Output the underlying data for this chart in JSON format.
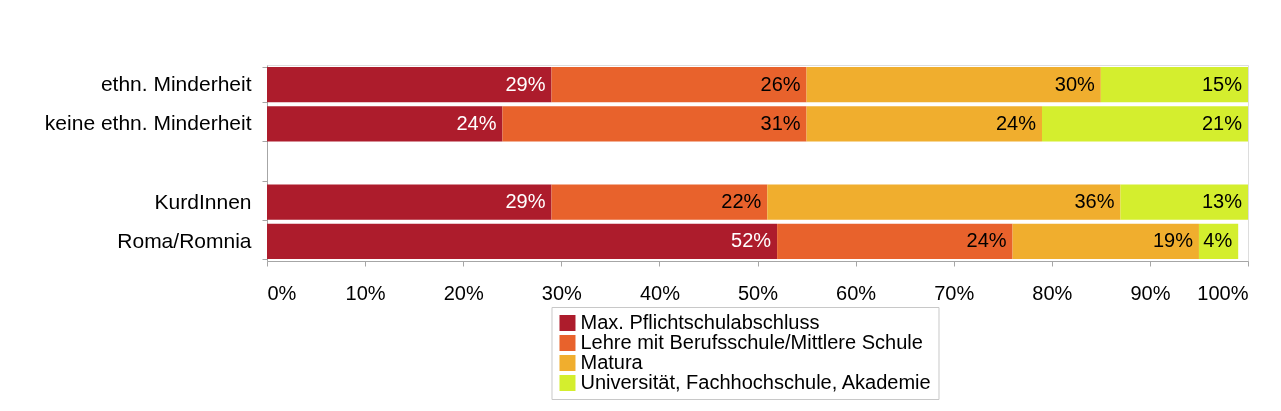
{
  "chart_data": {
    "type": "bar",
    "orientation": "horizontal",
    "stacked": true,
    "categories": [
      "ethn. Minderheit",
      "keine ethn. Minderheit",
      null,
      "KurdInnen",
      "Roma/Romnia"
    ],
    "series": [
      {
        "name": "Max. Pflichtschulabschluss",
        "color": "#ad1c2c",
        "values": [
          29,
          24,
          null,
          29,
          52
        ],
        "value_labels": [
          "29%",
          "24%",
          null,
          "29%",
          "52%"
        ]
      },
      {
        "name": "Lehre mit Berufsschule/Mittlere Schule",
        "color": "#e8622c",
        "values": [
          26,
          31,
          null,
          22,
          24
        ],
        "value_labels": [
          "26%",
          "31%",
          null,
          "22%",
          "24%"
        ]
      },
      {
        "name": "Matura",
        "color": "#f0ae2e",
        "values": [
          30,
          24,
          null,
          36,
          19
        ],
        "value_labels": [
          "30%",
          "24%",
          null,
          "36%",
          "19%"
        ]
      },
      {
        "name": "Universität, Fachhochschule, Akademie",
        "color": "#d4ee2e",
        "values": [
          15,
          21,
          null,
          13,
          4
        ],
        "value_labels": [
          "15%",
          "21%",
          null,
          "13%",
          "4%"
        ]
      }
    ],
    "xlim": [
      0,
      100
    ],
    "xticks": [
      {
        "value": 0,
        "label": "0%"
      },
      {
        "value": 10,
        "label": "10%"
      },
      {
        "value": 20,
        "label": "20%"
      },
      {
        "value": 30,
        "label": "30%"
      },
      {
        "value": 40,
        "label": "40%"
      },
      {
        "value": 50,
        "label": "50%"
      },
      {
        "value": 60,
        "label": "60%"
      },
      {
        "value": 70,
        "label": "70%"
      },
      {
        "value": 80,
        "label": "80%"
      },
      {
        "value": 90,
        "label": "90%"
      },
      {
        "value": 100,
        "label": "100%"
      }
    ],
    "legend": "bottom",
    "grid": false
  }
}
